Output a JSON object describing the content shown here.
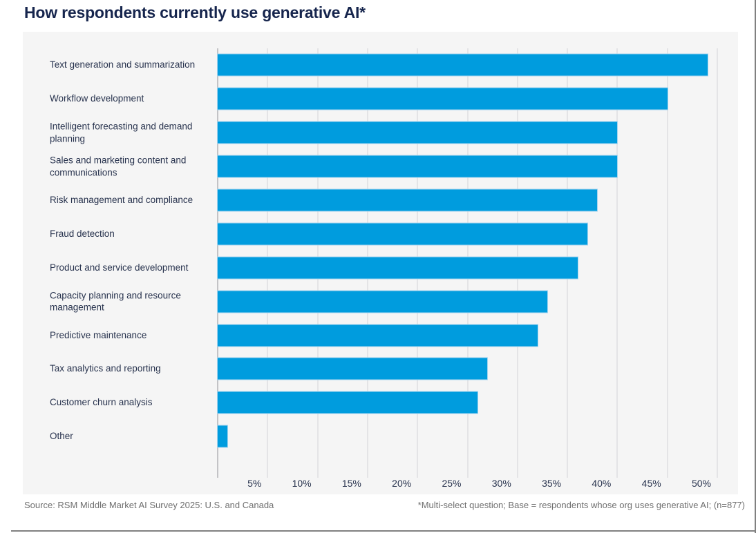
{
  "title": "How respondents currently use generative AI*",
  "footer": {
    "source": "Source: RSM Middle Market AI Survey 2025: U.S. and Canada",
    "note": "*Multi-select question; Base = respondents whose org uses generative AI; (n=877)"
  },
  "colors": {
    "title": "#16254D",
    "bar": "#009CDE",
    "bar_border": "#A5D4EE",
    "panel_bg": "#F5F5F5",
    "gridline": "#E4E4E6",
    "axis_line": "#C3C3C6",
    "label_text": "#28334E",
    "footer_text": "#6F6F6F",
    "page_border": "#808080"
  },
  "chart_data": {
    "type": "bar",
    "orientation": "horizontal",
    "title": "How respondents currently use generative AI*",
    "categories": [
      "Text generation and summarization",
      "Workflow development",
      "Intelligent forecasting and demand planning",
      "Sales and marketing content and communications",
      "Risk management and compliance",
      "Fraud detection",
      "Product and service development",
      "Capacity planning and resource management",
      "Predictive maintenance",
      "Tax analytics and reporting",
      "Customer churn analysis",
      "Other"
    ],
    "values": [
      49,
      45,
      40,
      40,
      38,
      37,
      36,
      33,
      32,
      27,
      26,
      1
    ],
    "unit": "%",
    "xlim": [
      0,
      52
    ],
    "tick_values": [
      5,
      10,
      15,
      20,
      25,
      30,
      35,
      40,
      45,
      50
    ],
    "tick_labels": [
      "5%",
      "10%",
      "15%",
      "20%",
      "25%",
      "30%",
      "35%",
      "40%",
      "45%",
      "50%"
    ],
    "grid": true,
    "legend": false,
    "bar_color": "#009CDE"
  }
}
